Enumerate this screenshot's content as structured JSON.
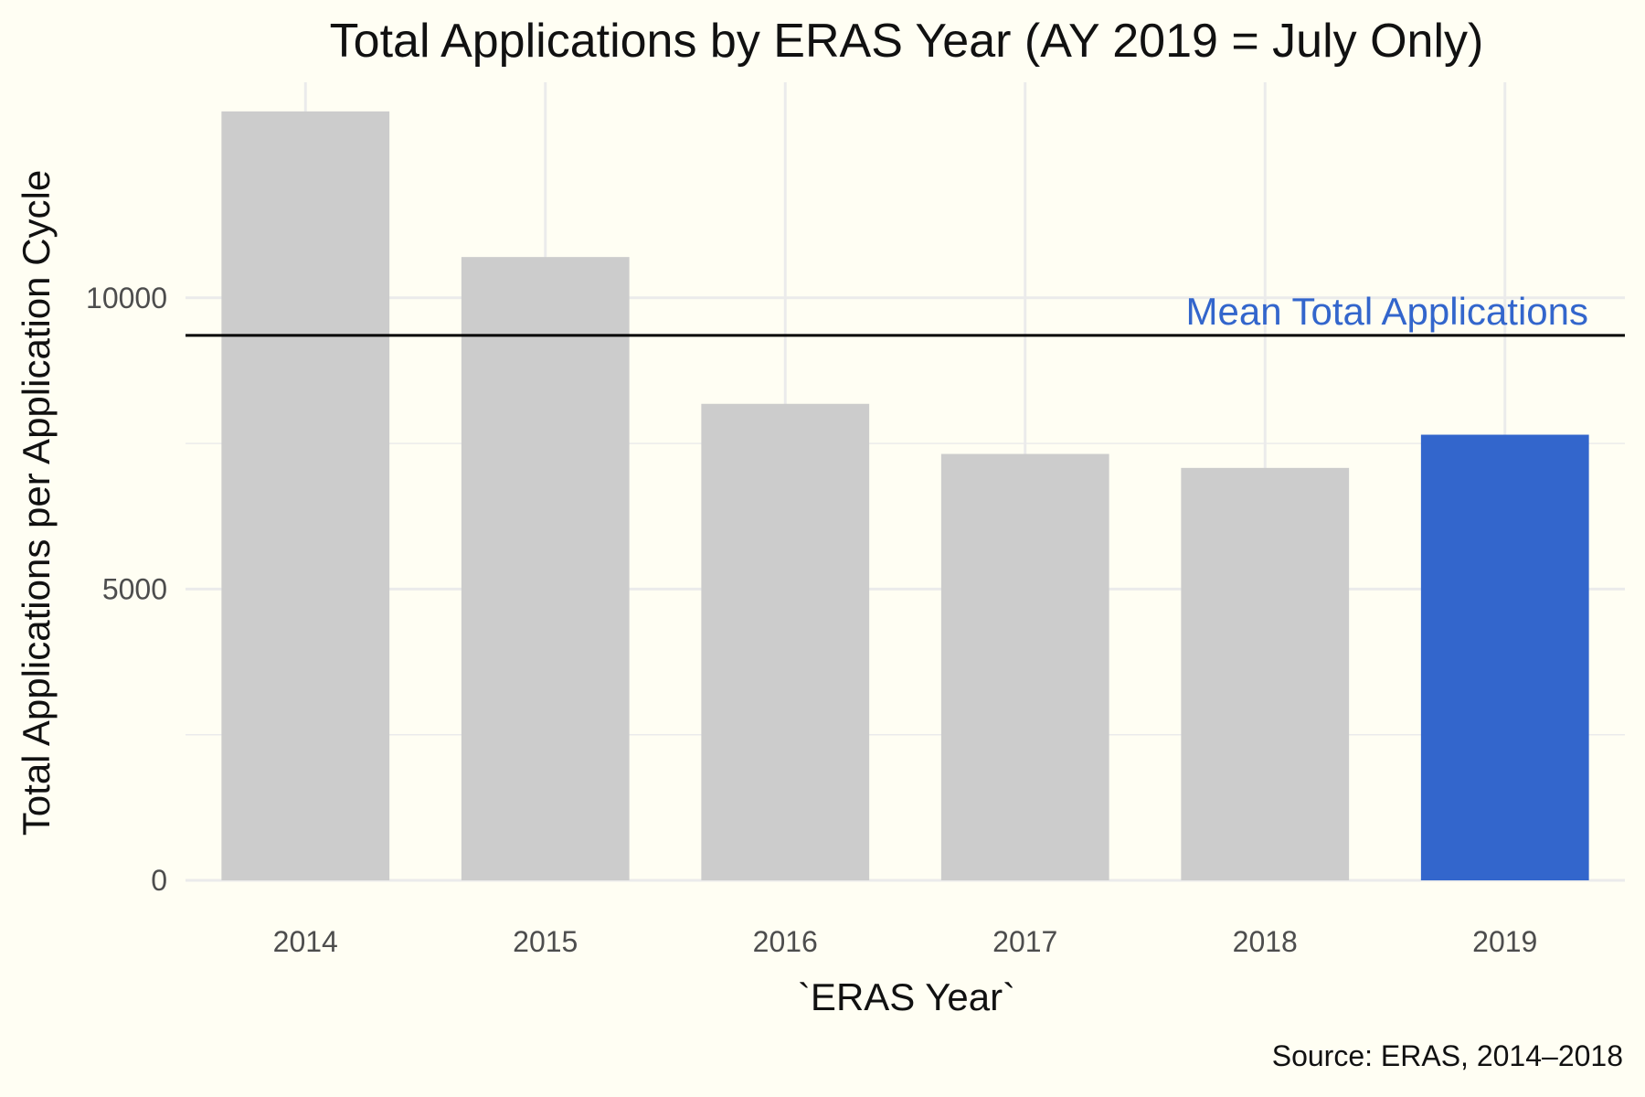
{
  "chart_data": {
    "type": "bar",
    "title": "Total Applications by ERAS Year (AY 2019 = July Only)",
    "xlabel": "`ERAS Year`",
    "ylabel": "Total Applications per Application Cycle",
    "caption": "Source: ERAS, 2014–2018",
    "categories": [
      "2014",
      "2015",
      "2016",
      "2017",
      "2018",
      "2019"
    ],
    "values": [
      13200,
      10700,
      8180,
      7320,
      7080,
      7650
    ],
    "highlight_category": "2019",
    "ylim": [
      0,
      13700
    ],
    "yticks": [
      0,
      5000,
      10000
    ],
    "ytick_labels": [
      "0",
      "5000",
      "10000"
    ],
    "grid": true,
    "legend": "none",
    "reference_line": {
      "label": "Mean Total Applications",
      "value": 9355
    },
    "colors": {
      "bar": "#CCCCCC",
      "highlight_bar": "#3366CC",
      "reference_line": "#000000",
      "annotation": "#3366CC",
      "grid": "#EBEBEB",
      "background": "#FFFEF3"
    }
  }
}
